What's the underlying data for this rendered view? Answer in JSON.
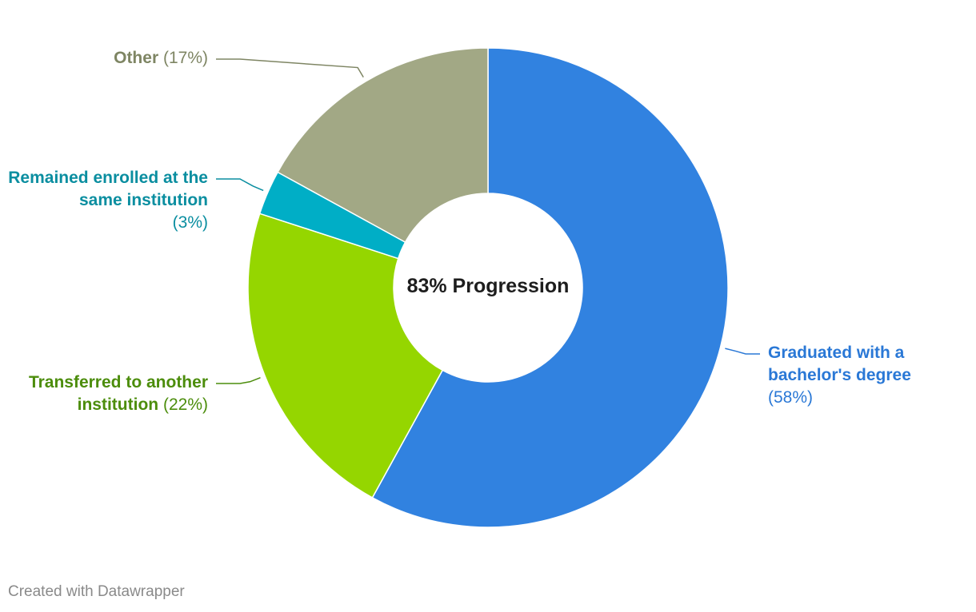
{
  "chart_data": {
    "type": "pie",
    "donut": true,
    "center_label": "83% Progression",
    "slices": [
      {
        "name": "Graduated with a bachelor's degree",
        "value": 58,
        "value_label": "(58%)",
        "color": "#3182e0",
        "text_color": "#2a78d6"
      },
      {
        "name": "Transferred to another institution",
        "value": 22,
        "value_label": "(22%)",
        "color": "#95d600",
        "text_color": "#4c8d0c"
      },
      {
        "name": "Remained enrolled at the same institution",
        "value": 3,
        "value_label": "(3%)",
        "color": "#00aec6",
        "text_color": "#0a8ea0"
      },
      {
        "name": "Other",
        "value": 17,
        "value_label": "(17%)",
        "color": "#a2a885",
        "text_color": "#7e8563"
      }
    ]
  },
  "footer": {
    "credit": "Created with Datawrapper"
  }
}
